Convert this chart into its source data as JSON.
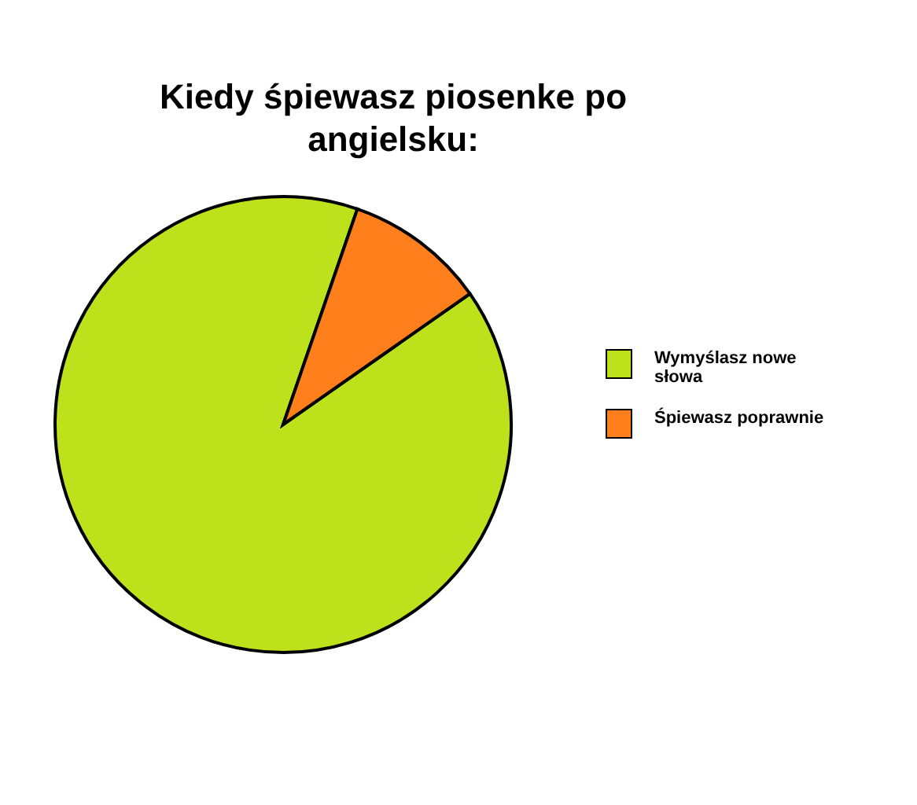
{
  "chart_data": {
    "type": "pie",
    "title": "Kiedy śpiewasz piosenke po angielsku:",
    "categories": [
      "Wymyślasz nowe słowa",
      "Śpiewasz poprawnie"
    ],
    "values": [
      90,
      10
    ],
    "colors": [
      "#bde11b",
      "#ff7f1c"
    ],
    "legend": "right"
  }
}
